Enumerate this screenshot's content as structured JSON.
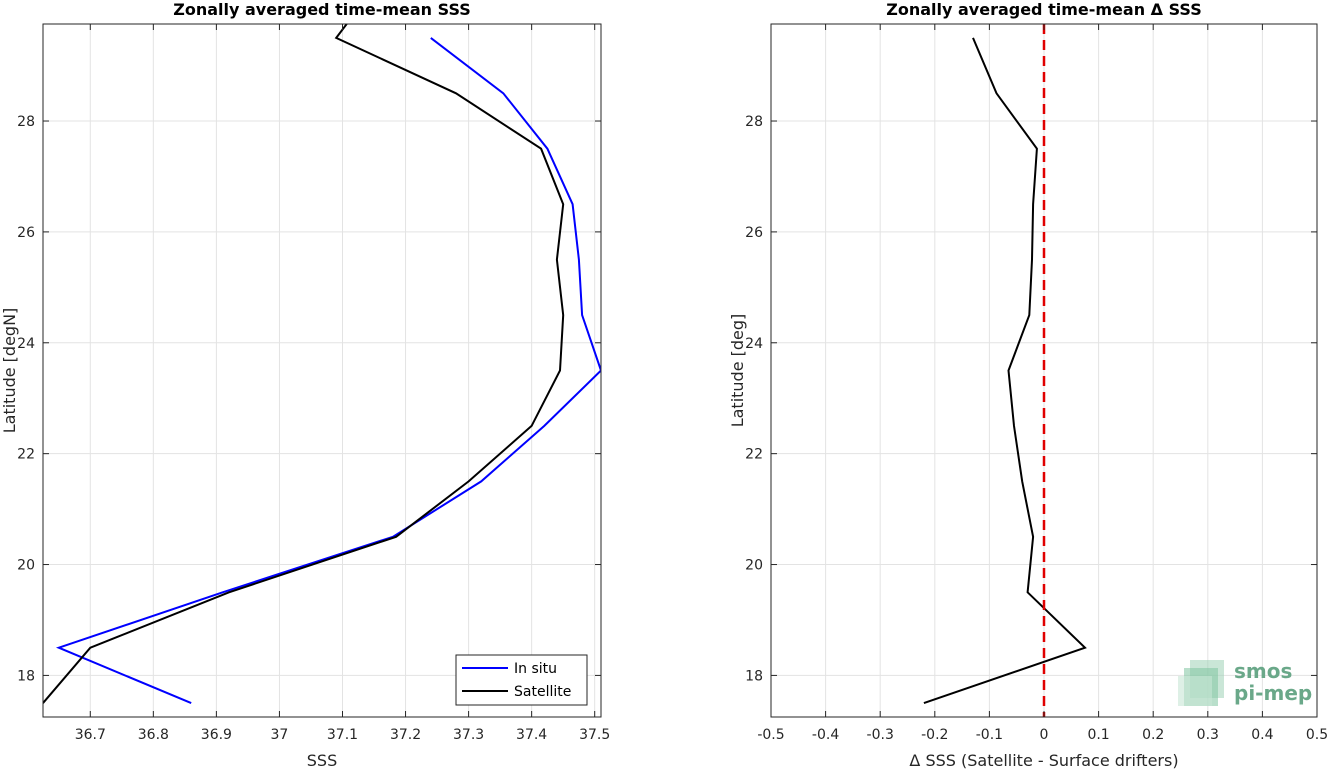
{
  "chart_data": [
    {
      "type": "line",
      "title": "Zonally averaged time-mean SSS",
      "xlabel": "SSS",
      "ylabel": "Latitude [degN]",
      "xlim": [
        36.625,
        37.51
      ],
      "ylim": [
        17.25,
        29.75
      ],
      "xticks": [
        36.7,
        36.8,
        36.9,
        37.0,
        37.1,
        37.2,
        37.3,
        37.4,
        37.5
      ],
      "xtick_labels": [
        "36.7",
        "36.8",
        "36.9",
        "37",
        "37.1",
        "37.2",
        "37.3",
        "37.4",
        "37.5"
      ],
      "yticks": [
        18,
        20,
        22,
        24,
        26,
        28
      ],
      "grid": true,
      "legend": "bottom-right",
      "series": [
        {
          "name": "In situ",
          "color": "#0000ff",
          "points": [
            [
              36.86,
              17.5
            ],
            [
              36.65,
              18.5
            ],
            [
              36.91,
              19.5
            ],
            [
              37.18,
              20.5
            ],
            [
              37.32,
              21.5
            ],
            [
              37.42,
              22.5
            ],
            [
              37.51,
              23.5
            ],
            [
              37.48,
              24.5
            ],
            [
              37.475,
              25.5
            ],
            [
              37.465,
              26.5
            ],
            [
              37.425,
              27.5
            ],
            [
              37.355,
              28.5
            ],
            [
              37.24,
              29.5
            ]
          ]
        },
        {
          "name": "Satellite",
          "color": "#000000",
          "points": [
            [
              36.625,
              17.5
            ],
            [
              36.7,
              18.5
            ],
            [
              36.92,
              19.5
            ],
            [
              37.185,
              20.5
            ],
            [
              37.3,
              21.5
            ],
            [
              37.4,
              22.5
            ],
            [
              37.445,
              23.5
            ],
            [
              37.45,
              24.5
            ],
            [
              37.44,
              25.5
            ],
            [
              37.45,
              26.5
            ],
            [
              37.415,
              27.5
            ],
            [
              37.28,
              28.5
            ],
            [
              37.09,
              29.5
            ],
            [
              37.11,
              29.8
            ]
          ]
        }
      ]
    },
    {
      "type": "line",
      "title": "Zonally averaged time-mean Δ SSS",
      "xlabel": "Δ SSS (Satellite - Surface drifters)",
      "ylabel": "Latitude [deg]",
      "xlim": [
        -0.5,
        0.5
      ],
      "ylim": [
        17.25,
        29.75
      ],
      "xticks": [
        -0.5,
        -0.4,
        -0.3,
        -0.2,
        -0.1,
        0,
        0.1,
        0.2,
        0.3,
        0.4,
        0.5
      ],
      "xtick_labels": [
        "-0.5",
        "-0.4",
        "-0.3",
        "-0.2",
        "-0.1",
        "0",
        "0.1",
        "0.2",
        "0.3",
        "0.4",
        "0.5"
      ],
      "yticks": [
        18,
        20,
        22,
        24,
        26,
        28
      ],
      "grid": true,
      "reference_line": {
        "x": 0,
        "color": "#e00000",
        "style": "dashed"
      },
      "series": [
        {
          "color": "#000000",
          "points": [
            [
              -0.22,
              17.5
            ],
            [
              0.075,
              18.5
            ],
            [
              -0.03,
              19.5
            ],
            [
              -0.02,
              20.5
            ],
            [
              -0.04,
              21.5
            ],
            [
              -0.055,
              22.5
            ],
            [
              -0.065,
              23.5
            ],
            [
              -0.027,
              24.5
            ],
            [
              -0.022,
              25.5
            ],
            [
              -0.02,
              26.5
            ],
            [
              -0.013,
              27.5
            ],
            [
              -0.087,
              28.5
            ],
            [
              -0.13,
              29.5
            ]
          ]
        }
      ]
    }
  ],
  "logo": {
    "line1": "smos",
    "line2": "pi-mep",
    "color": "#6aa889"
  }
}
